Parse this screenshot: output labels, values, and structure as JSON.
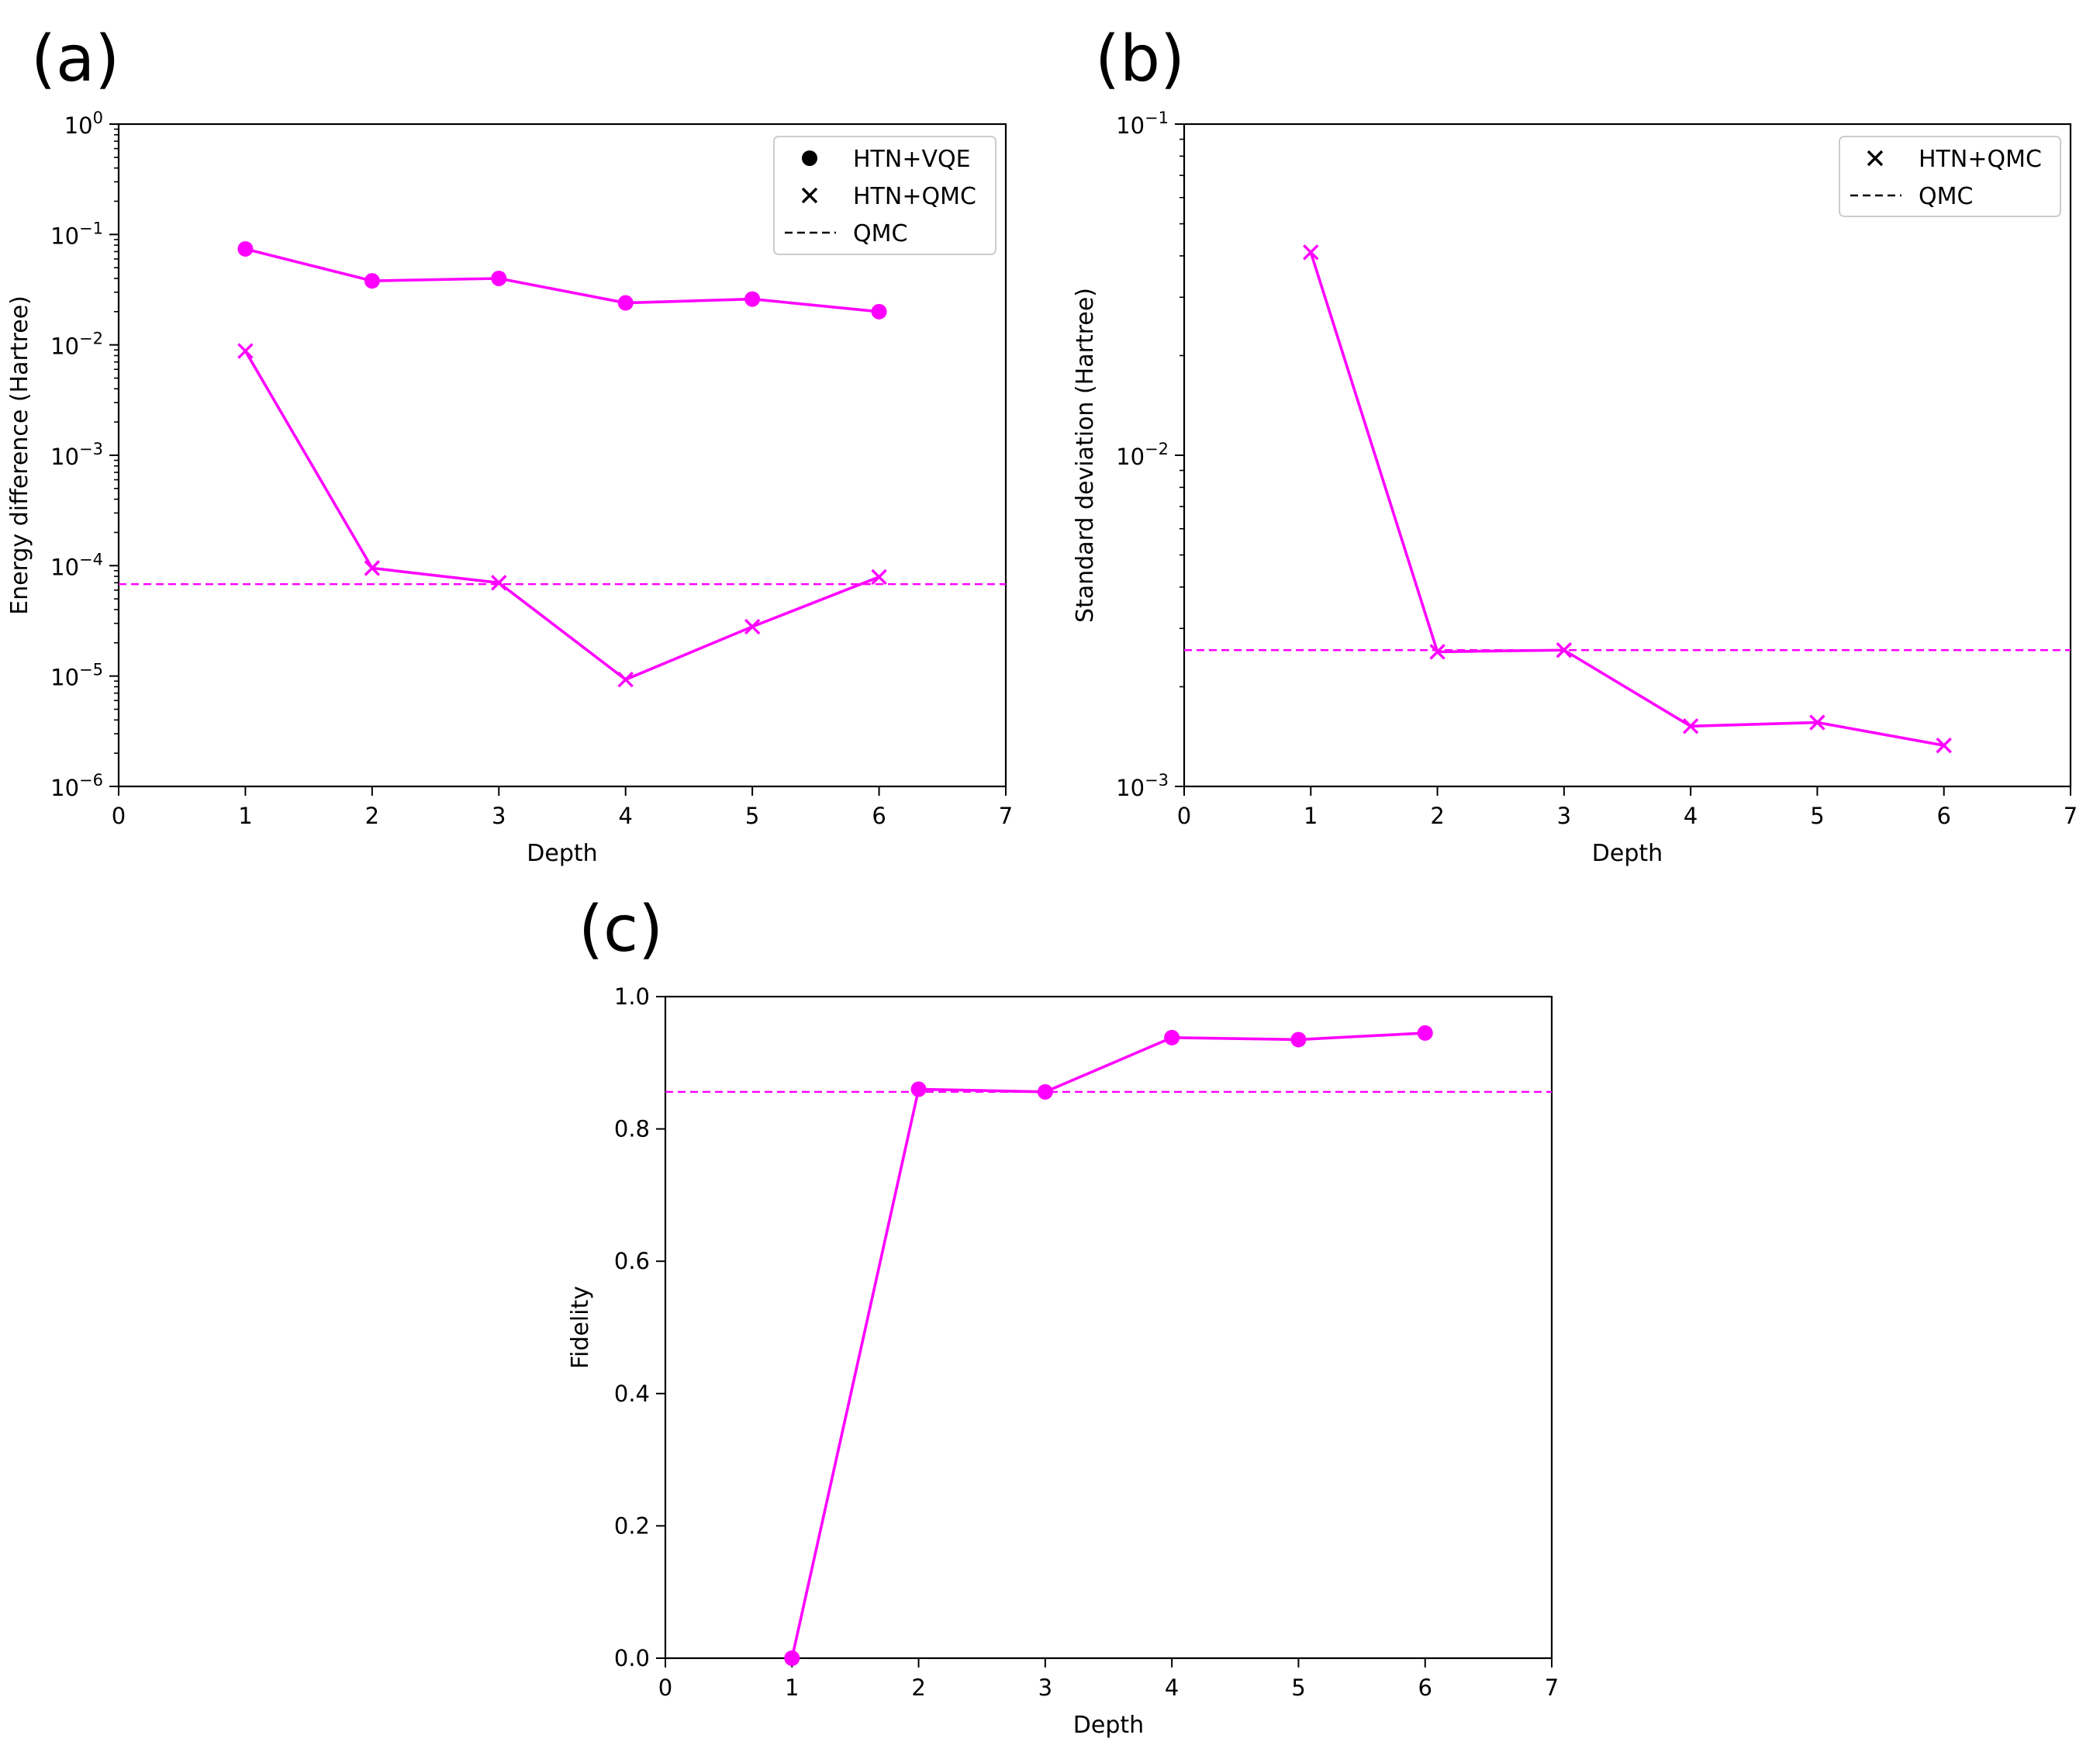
{
  "figure": {
    "panels": [
      {
        "label": "(a)"
      },
      {
        "label": "(b)"
      },
      {
        "label": "(c)"
      }
    ]
  },
  "chart_data": [
    {
      "type": "line",
      "panel": "(a)",
      "xlabel": "Depth",
      "ylabel": "Energy difference (Hartree)",
      "xlim": [
        0,
        7
      ],
      "xticks": [
        0,
        1,
        2,
        3,
        4,
        5,
        6,
        7
      ],
      "yscale": "log",
      "ylim": [
        1e-06,
        1
      ],
      "yticks": [
        {
          "value": 1e-06,
          "base": "10",
          "exp": "−6"
        },
        {
          "value": 1e-05,
          "base": "10",
          "exp": "−5"
        },
        {
          "value": 0.0001,
          "base": "10",
          "exp": "−4"
        },
        {
          "value": 0.001,
          "base": "10",
          "exp": "−3"
        },
        {
          "value": 0.01,
          "base": "10",
          "exp": "−2"
        },
        {
          "value": 0.1,
          "base": "10",
          "exp": "−1"
        },
        {
          "value": 1,
          "base": "10",
          "exp": "0"
        }
      ],
      "grid": false,
      "legend_position": "top-right",
      "series": [
        {
          "name": "HTN+VQE",
          "marker": "circle",
          "x": [
            1,
            2,
            3,
            4,
            5,
            6
          ],
          "values": [
            0.074,
            0.038,
            0.04,
            0.024,
            0.026,
            0.02
          ]
        },
        {
          "name": "HTN+QMC",
          "marker": "x",
          "x": [
            1,
            2,
            3,
            4,
            5,
            6
          ],
          "values": [
            0.0088,
            9.5e-05,
            7e-05,
            9.3e-06,
            2.8e-05,
            7.9e-05
          ]
        },
        {
          "name": "QMC",
          "marker": "dashed",
          "hline": 6.8e-05
        }
      ],
      "color": "#ff00ff"
    },
    {
      "type": "line",
      "panel": "(b)",
      "xlabel": "Depth",
      "ylabel": "Standard deviation (Hartree)",
      "xlim": [
        0,
        7
      ],
      "xticks": [
        0,
        1,
        2,
        3,
        4,
        5,
        6,
        7
      ],
      "yscale": "log",
      "ylim": [
        0.001,
        0.1
      ],
      "yticks": [
        {
          "value": 0.001,
          "base": "10",
          "exp": "−3"
        },
        {
          "value": 0.01,
          "base": "10",
          "exp": "−2"
        },
        {
          "value": 0.1,
          "base": "10",
          "exp": "−1"
        }
      ],
      "grid": false,
      "legend_position": "top-right",
      "series": [
        {
          "name": "HTN+QMC",
          "marker": "x",
          "x": [
            1,
            2,
            3,
            4,
            5,
            6
          ],
          "values": [
            0.041,
            0.00255,
            0.00258,
            0.00152,
            0.00156,
            0.00133
          ]
        },
        {
          "name": "QMC",
          "marker": "dashed",
          "hline": 0.00258
        }
      ],
      "color": "#ff00ff"
    },
    {
      "type": "line",
      "panel": "(c)",
      "xlabel": "Depth",
      "ylabel": "Fidelity",
      "xlim": [
        0,
        7
      ],
      "xticks": [
        0,
        1,
        2,
        3,
        4,
        5,
        6,
        7
      ],
      "yscale": "linear",
      "ylim": [
        0,
        1
      ],
      "yticks": [
        {
          "value": 0,
          "label": "0.0"
        },
        {
          "value": 0.2,
          "label": "0.2"
        },
        {
          "value": 0.4,
          "label": "0.4"
        },
        {
          "value": 0.6,
          "label": "0.6"
        },
        {
          "value": 0.8,
          "label": "0.8"
        },
        {
          "value": 1.0,
          "label": "1.0"
        }
      ],
      "grid": false,
      "legend_position": "none",
      "series": [
        {
          "name": "HTN+VQE",
          "marker": "circle",
          "x": [
            1,
            2,
            3,
            4,
            5,
            6
          ],
          "values": [
            0.0,
            0.86,
            0.856,
            0.938,
            0.935,
            0.945
          ]
        },
        {
          "name": "QMC",
          "marker": "dashed",
          "hline": 0.856
        }
      ],
      "color": "#ff00ff"
    }
  ]
}
